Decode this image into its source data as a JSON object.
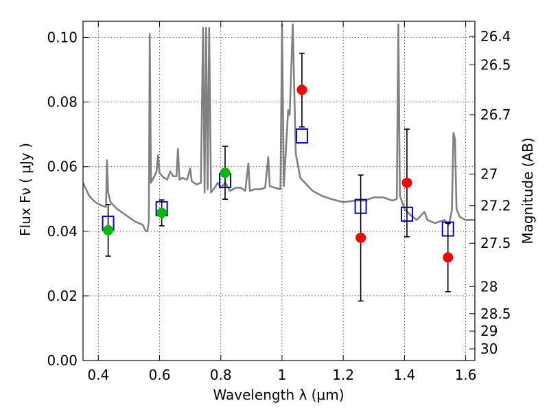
{
  "chart_data": {
    "type": "scatter",
    "xlabel": "Wavelength  λ (μm)",
    "ylabel": "Flux  Fν  ( μJy )",
    "ylabel_right": "Magnitude (AB)",
    "xlim": [
      0.35,
      1.63
    ],
    "ylim": [
      0.0,
      0.105
    ],
    "x_ticks": [
      0.4,
      0.6,
      0.8,
      1.0,
      1.2,
      1.4,
      1.6
    ],
    "x_tick_labels": [
      "0.4",
      "0.6",
      "0.8",
      "1",
      "1.2",
      "1.4",
      "1.6"
    ],
    "y_ticks": [
      0.0,
      0.02,
      0.04,
      0.06,
      0.08,
      0.1
    ],
    "y_tick_labels": [
      "0.00",
      "0.02",
      "0.04",
      "0.06",
      "0.08",
      "0.10"
    ],
    "right_ticks": [
      {
        "label": "26.4",
        "flux": 0.1003
      },
      {
        "label": "26.5",
        "flux": 0.0915
      },
      {
        "label": "26.7",
        "flux": 0.0761
      },
      {
        "label": "27",
        "flux": 0.0577
      },
      {
        "label": "27.2",
        "flux": 0.0479
      },
      {
        "label": "27.5",
        "flux": 0.0363
      },
      {
        "label": "28",
        "flux": 0.0229
      },
      {
        "label": "28.5",
        "flux": 0.0145
      },
      {
        "label": "29",
        "flux": 0.0091
      },
      {
        "label": "30",
        "flux": 0.0036
      }
    ],
    "grid": true,
    "colors": {
      "spectrum": "#808080",
      "model_boxes": "#0000cc",
      "green_points": "#00bb00",
      "red_points": "#ff0000",
      "errorbars": "#000000"
    },
    "series": [
      {
        "type": "line",
        "points": [
          [
            0.35,
            0.055
          ],
          [
            0.37,
            0.051
          ],
          [
            0.39,
            0.049
          ],
          [
            0.41,
            0.048
          ],
          [
            0.425,
            0.0475
          ],
          [
            0.428,
            0.062
          ],
          [
            0.432,
            0.052
          ],
          [
            0.44,
            0.049
          ],
          [
            0.46,
            0.047
          ],
          [
            0.49,
            0.045
          ],
          [
            0.52,
            0.043
          ],
          [
            0.545,
            0.042
          ],
          [
            0.555,
            0.04
          ],
          [
            0.56,
            0.04
          ],
          [
            0.565,
            0.043
          ],
          [
            0.568,
            0.101
          ],
          [
            0.572,
            0.055
          ],
          [
            0.58,
            0.0565
          ],
          [
            0.59,
            0.0585
          ],
          [
            0.595,
            0.0635
          ],
          [
            0.6,
            0.058
          ],
          [
            0.615,
            0.0565
          ],
          [
            0.625,
            0.056
          ],
          [
            0.635,
            0.0585
          ],
          [
            0.645,
            0.057
          ],
          [
            0.655,
            0.057
          ],
          [
            0.66,
            0.0655
          ],
          [
            0.665,
            0.056
          ],
          [
            0.675,
            0.0565
          ],
          [
            0.69,
            0.056
          ],
          [
            0.7,
            0.0595
          ],
          [
            0.705,
            0.0555
          ],
          [
            0.72,
            0.0545
          ],
          [
            0.735,
            0.055
          ],
          [
            0.742,
            0.103
          ],
          [
            0.747,
            0.052
          ],
          [
            0.752,
            0.103
          ],
          [
            0.757,
            0.053
          ],
          [
            0.762,
            0.103
          ],
          [
            0.768,
            0.052
          ],
          [
            0.78,
            0.0535
          ],
          [
            0.79,
            0.055
          ],
          [
            0.8,
            0.0535
          ],
          [
            0.815,
            0.055
          ],
          [
            0.83,
            0.0525
          ],
          [
            0.85,
            0.0535
          ],
          [
            0.865,
            0.0535
          ],
          [
            0.88,
            0.0525
          ],
          [
            0.89,
            0.061
          ],
          [
            0.895,
            0.0525
          ],
          [
            0.91,
            0.053
          ],
          [
            0.93,
            0.053
          ],
          [
            0.945,
            0.0535
          ],
          [
            0.955,
            0.063
          ],
          [
            0.96,
            0.054
          ],
          [
            0.975,
            0.0535
          ],
          [
            0.995,
            0.053
          ],
          [
            1.0,
            0.104
          ],
          [
            1.006,
            0.054
          ],
          [
            1.02,
            0.0775
          ],
          [
            1.025,
            0.076
          ],
          [
            1.035,
            0.104
          ],
          [
            1.045,
            0.064
          ],
          [
            1.06,
            0.0565
          ],
          [
            1.08,
            0.0545
          ],
          [
            1.1,
            0.0525
          ],
          [
            1.13,
            0.051
          ],
          [
            1.16,
            0.05
          ],
          [
            1.2,
            0.049
          ],
          [
            1.24,
            0.0495
          ],
          [
            1.27,
            0.0495
          ],
          [
            1.3,
            0.0505
          ],
          [
            1.33,
            0.0505
          ],
          [
            1.36,
            0.0495
          ],
          [
            1.375,
            0.05
          ],
          [
            1.38,
            0.104
          ],
          [
            1.385,
            0.051
          ],
          [
            1.4,
            0.047
          ],
          [
            1.42,
            0.045
          ],
          [
            1.44,
            0.0435
          ],
          [
            1.45,
            0.0445
          ],
          [
            1.465,
            0.046
          ],
          [
            1.475,
            0.0435
          ],
          [
            1.5,
            0.0425
          ],
          [
            1.53,
            0.0435
          ],
          [
            1.545,
            0.042
          ],
          [
            1.555,
            0.0465
          ],
          [
            1.56,
            0.0705
          ],
          [
            1.565,
            0.0685
          ],
          [
            1.57,
            0.047
          ],
          [
            1.58,
            0.0445
          ],
          [
            1.6,
            0.0435
          ],
          [
            1.63,
            0.0435
          ]
        ]
      },
      {
        "type": "scatter_box",
        "points": [
          [
            0.432,
            0.0425
          ],
          [
            0.607,
            0.047
          ],
          [
            0.814,
            0.0557
          ],
          [
            1.065,
            0.0695
          ],
          [
            1.257,
            0.0477
          ],
          [
            1.408,
            0.0453
          ],
          [
            1.542,
            0.0407
          ]
        ]
      },
      {
        "type": "scatter_errorbar",
        "points": [
          {
            "x": 0.432,
            "y": 0.0403,
            "yerr": [
              0.0323,
              0.0483
            ]
          },
          {
            "x": 0.607,
            "y": 0.0457,
            "yerr": [
              0.0417,
              0.0497
            ]
          },
          {
            "x": 0.814,
            "y": 0.0581,
            "yerr": [
              0.0499,
              0.0663
            ]
          },
          {
            "x": 1.065,
            "y": 0.0838,
            "yerr": [
              0.0723,
              0.0951
            ]
          },
          {
            "x": 1.257,
            "y": 0.038,
            "yerr": [
              0.0184,
              0.0574
            ]
          },
          {
            "x": 1.408,
            "y": 0.055,
            "yerr": [
              0.0383,
              0.0716
            ]
          },
          {
            "x": 1.542,
            "y": 0.0319,
            "yerr": [
              0.0213,
              0.0425
            ]
          }
        ],
        "point_colors": [
          "green",
          "green",
          "green",
          "red",
          "red",
          "red",
          "red"
        ]
      }
    ]
  }
}
